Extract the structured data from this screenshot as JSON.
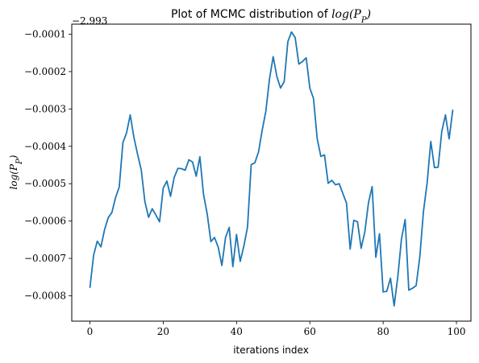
{
  "chart_data": {
    "type": "line",
    "title_prefix": "Plot of MCMC distribution of ",
    "title_math": "log(P",
    "title_math_sub": "P",
    "title_math_close": ")",
    "xlabel": "iterations index",
    "ylabel_math": "log(P",
    "ylabel_math_sub": "P",
    "ylabel_math_close": ")",
    "offset_text": "−2.993",
    "xlim": [
      -4.95,
      103.95
    ],
    "ylim": [
      -0.000868,
      -7.3e-05
    ],
    "xticks": [
      0,
      20,
      40,
      60,
      80,
      100
    ],
    "xtick_labels": [
      "0",
      "20",
      "40",
      "60",
      "80",
      "100"
    ],
    "yticks": [
      -0.0008,
      -0.0007,
      -0.0006,
      -0.0005,
      -0.0004,
      -0.0003,
      -0.0002,
      -0.0001
    ],
    "ytick_labels": [
      "−0.0008",
      "−0.0007",
      "−0.0006",
      "−0.0005",
      "−0.0004",
      "−0.0003",
      "−0.0002",
      "−0.0001"
    ],
    "grid": false,
    "series": [
      {
        "color": "#1f77b4",
        "x": [
          0,
          1,
          2,
          3,
          4,
          5,
          6,
          7,
          8,
          9,
          10,
          11,
          12,
          13,
          14,
          15,
          16,
          17,
          18,
          19,
          20,
          21,
          22,
          23,
          24,
          25,
          26,
          27,
          28,
          29,
          30,
          31,
          32,
          33,
          34,
          35,
          36,
          37,
          38,
          39,
          40,
          41,
          42,
          43,
          44,
          45,
          46,
          47,
          48,
          49,
          50,
          51,
          52,
          53,
          54,
          55,
          56,
          57,
          58,
          59,
          60,
          61,
          62,
          63,
          64,
          65,
          66,
          67,
          68,
          69,
          70,
          71,
          72,
          73,
          74,
          75,
          76,
          77,
          78,
          79,
          80,
          81,
          82,
          83,
          84,
          85,
          86,
          87,
          88,
          89,
          90,
          91,
          92,
          93,
          94,
          95,
          96,
          97,
          98,
          99
        ],
        "values": [
          -0.000779,
          -0.000692,
          -0.000654,
          -0.000669,
          -0.000623,
          -0.000591,
          -0.000577,
          -0.000537,
          -0.000509,
          -0.00039,
          -0.000364,
          -0.000316,
          -0.000376,
          -0.000421,
          -0.000463,
          -0.000548,
          -0.00059,
          -0.000567,
          -0.000584,
          -0.000602,
          -0.000512,
          -0.000493,
          -0.000534,
          -0.000483,
          -0.000459,
          -0.00046,
          -0.000464,
          -0.000436,
          -0.000442,
          -0.00048,
          -0.000428,
          -0.000529,
          -0.000581,
          -0.000655,
          -0.000644,
          -0.00067,
          -0.000719,
          -0.000644,
          -0.000617,
          -0.000722,
          -0.000636,
          -0.000708,
          -0.000667,
          -0.000616,
          -0.000449,
          -0.000444,
          -0.000415,
          -0.000357,
          -0.000306,
          -0.000219,
          -0.00016,
          -0.000213,
          -0.000244,
          -0.000227,
          -0.00012,
          -9.4e-05,
          -0.000109,
          -0.00018,
          -0.000173,
          -0.000163,
          -0.000244,
          -0.000272,
          -0.000379,
          -0.000427,
          -0.000423,
          -0.000499,
          -0.000491,
          -0.000503,
          -0.0005,
          -0.000526,
          -0.000552,
          -0.000675,
          -0.000598,
          -0.000602,
          -0.000673,
          -0.000629,
          -0.000551,
          -0.000508,
          -0.000697,
          -0.000634,
          -0.00079,
          -0.000788,
          -0.000753,
          -0.000827,
          -0.000749,
          -0.000648,
          -0.000596,
          -0.000785,
          -0.00078,
          -0.000773,
          -0.000696,
          -0.000574,
          -0.000498,
          -0.000387,
          -0.000457,
          -0.000456,
          -0.00036,
          -0.000316,
          -0.00038,
          -0.000302
        ]
      }
    ]
  }
}
